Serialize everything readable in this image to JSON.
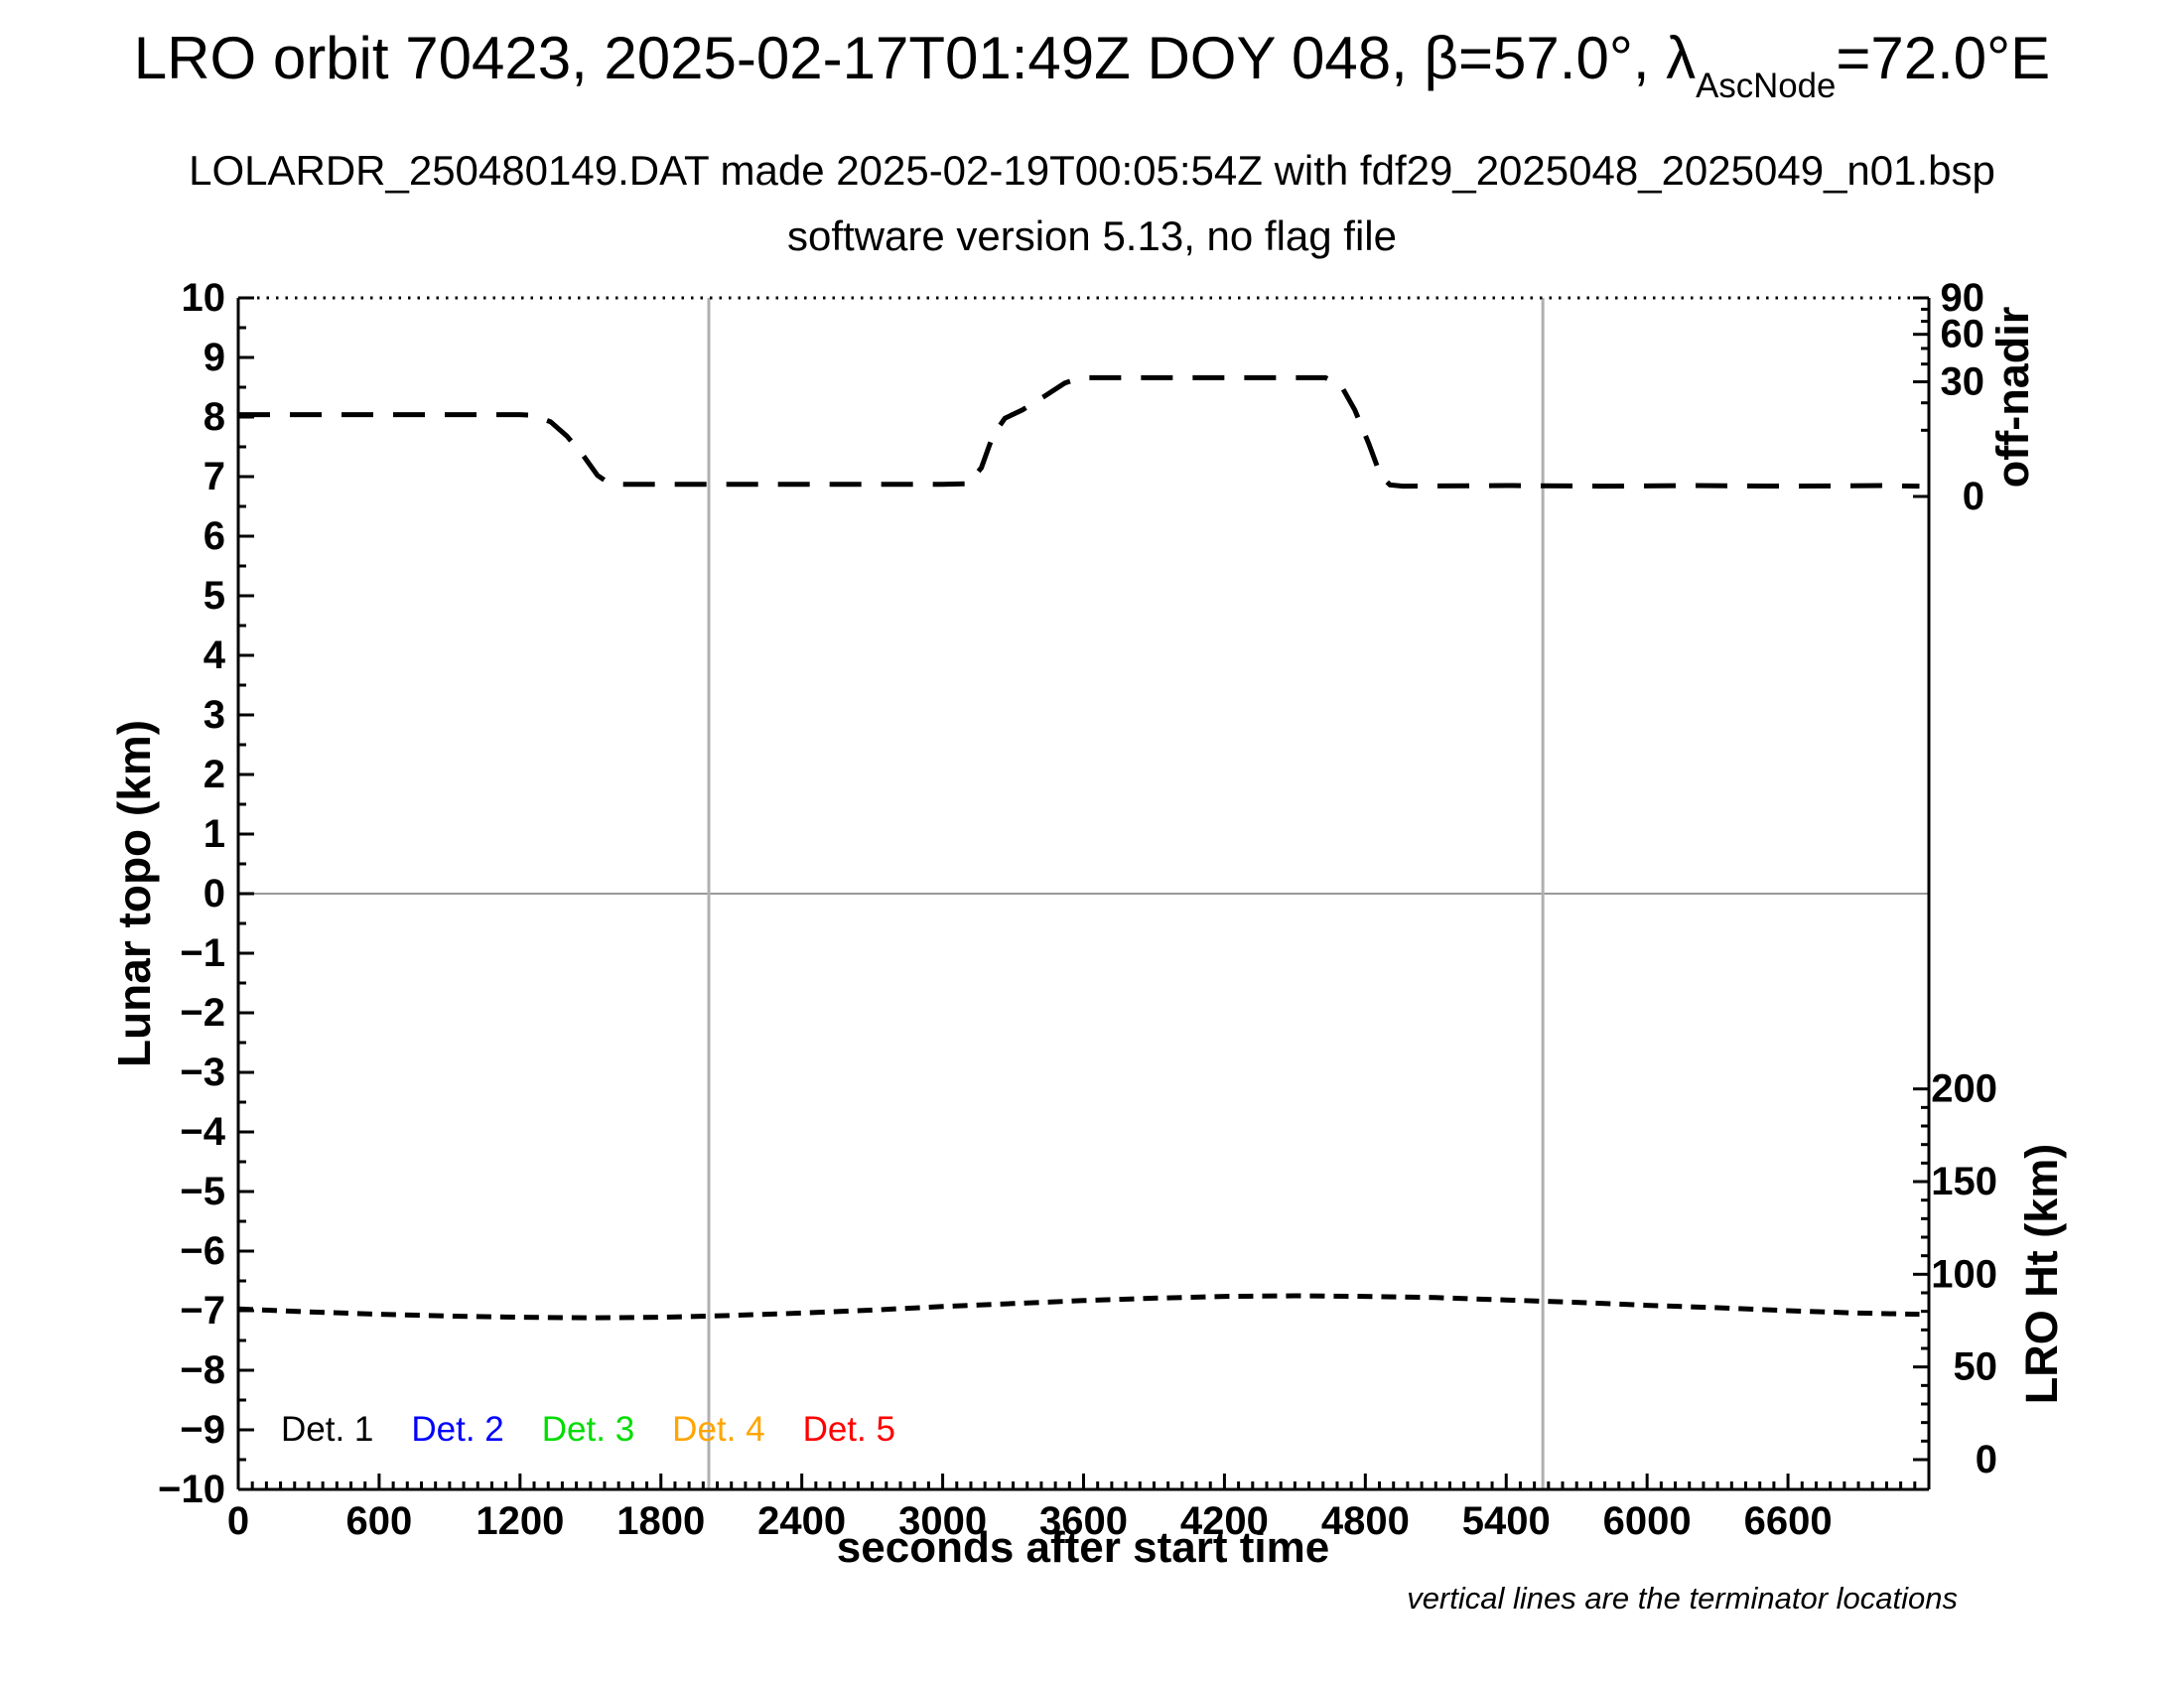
{
  "header": {
    "title_prefix": "LRO orbit 70423, 2025-02-17T01:49Z DOY 048, β=57.0°, λ",
    "title_sub": "AscNode",
    "title_suffix": "=72.0°E",
    "subtitle": "LOLARDR_250480149.DAT made 2025-02-19T00:05:54Z with fdf29_2025048_2025049_n01.bsp",
    "subtitle2": "software version 5.13, no flag file"
  },
  "chart_data": {
    "type": "line",
    "title": "LRO orbit 70423, 2025-02-17T01:49Z DOY 048, β=57.0°, λ_AscNode=72.0°E",
    "subtitle": "LOLARDR_250480149.DAT made 2025-02-19T00:05:54Z with fdf29_2025048_2025049_n01.bsp",
    "subtitle2": "software version 5.13, no flag file",
    "xlabel": "seconds after start time",
    "ylabel_left": "Lunar topo (km)",
    "ylabel_right_top": "off-nadir",
    "ylabel_right_bottom": "LRO Ht (km)",
    "note": "vertical lines are the terminator locations",
    "xlim": [
      0,
      7200
    ],
    "ylim_left": [
      -10,
      10
    ],
    "x_major_ticks": [
      0,
      600,
      1200,
      1800,
      2400,
      3000,
      3600,
      4200,
      4800,
      5400,
      6000,
      6600
    ],
    "x_minor_step": 60,
    "y_major_ticks": [
      -10,
      -9,
      -8,
      -7,
      -6,
      -5,
      -4,
      -3,
      -2,
      -1,
      0,
      1,
      2,
      3,
      4,
      5,
      6,
      7,
      8,
      9,
      10
    ],
    "y_minor_step": 0.5,
    "offnadir_axis": {
      "scale": "sqrt",
      "major_ticks": [
        90,
        60,
        30,
        0
      ],
      "minor_ticks": [
        10,
        20,
        40,
        50,
        70,
        80
      ],
      "left_value_at_0": 6.667,
      "left_value_at_90": 10
    },
    "lro_ht_axis": {
      "scale": "linear",
      "major_ticks": [
        200,
        150,
        100,
        50,
        0
      ],
      "minor_step": 10,
      "left_value_at_0": -9.5,
      "left_value_at_200": -3.278
    },
    "terminator_lines_x_seconds": [
      2004,
      5556
    ],
    "zero_line_y": 0,
    "grid": "none (gray zero line + gray terminator verticals)",
    "legend_position": "bottom-left inside plot",
    "series": [
      {
        "name": "off-nadir angle",
        "points_units": "seconds vs left-axis plot units (sqrt-scaled degrees)",
        "plateaus_deg_approx": {
          "start": 15.5,
          "middle_low": 0.3,
          "high": 32
        },
        "dash": [
          32,
          20
        ],
        "color": "#000000",
        "points": [
          [
            0,
            8.04
          ],
          [
            300,
            8.04
          ],
          [
            600,
            8.04
          ],
          [
            900,
            8.04
          ],
          [
            1200,
            8.04
          ],
          [
            1255,
            8.03
          ],
          [
            1330,
            7.92
          ],
          [
            1400,
            7.68
          ],
          [
            1470,
            7.35
          ],
          [
            1530,
            7.02
          ],
          [
            1575,
            6.9
          ],
          [
            1630,
            6.87
          ],
          [
            2000,
            6.87
          ],
          [
            2500,
            6.87
          ],
          [
            3000,
            6.87
          ],
          [
            3110,
            6.88
          ],
          [
            3165,
            7.15
          ],
          [
            3215,
            7.7
          ],
          [
            3265,
            7.98
          ],
          [
            3340,
            8.12
          ],
          [
            3430,
            8.34
          ],
          [
            3520,
            8.57
          ],
          [
            3590,
            8.66
          ],
          [
            4000,
            8.66
          ],
          [
            4400,
            8.66
          ],
          [
            4630,
            8.66
          ],
          [
            4695,
            8.54
          ],
          [
            4755,
            8.12
          ],
          [
            4815,
            7.55
          ],
          [
            4865,
            7.02
          ],
          [
            4905,
            6.86
          ],
          [
            4960,
            6.84
          ],
          [
            5400,
            6.85
          ],
          [
            5800,
            6.84
          ],
          [
            6200,
            6.85
          ],
          [
            6600,
            6.84
          ],
          [
            7000,
            6.85
          ],
          [
            7160,
            6.84
          ]
        ]
      },
      {
        "name": "LRO height",
        "points_units": "seconds vs left-axis plot units",
        "approx_km": {
          "start": 81,
          "min": 77,
          "max": 88,
          "end": 79
        },
        "dash": [
          15,
          9
        ],
        "color": "#000000",
        "points": [
          [
            0,
            -6.97
          ],
          [
            300,
            -7.02
          ],
          [
            600,
            -7.06
          ],
          [
            900,
            -7.09
          ],
          [
            1200,
            -7.11
          ],
          [
            1500,
            -7.12
          ],
          [
            1800,
            -7.11
          ],
          [
            2100,
            -7.08
          ],
          [
            2400,
            -7.04
          ],
          [
            2700,
            -6.99
          ],
          [
            3000,
            -6.93
          ],
          [
            3300,
            -6.88
          ],
          [
            3600,
            -6.83
          ],
          [
            3900,
            -6.79
          ],
          [
            4200,
            -6.76
          ],
          [
            4500,
            -6.75
          ],
          [
            4800,
            -6.76
          ],
          [
            5100,
            -6.78
          ],
          [
            5400,
            -6.82
          ],
          [
            5700,
            -6.86
          ],
          [
            6000,
            -6.91
          ],
          [
            6300,
            -6.95
          ],
          [
            6600,
            -7.0
          ],
          [
            6900,
            -7.04
          ],
          [
            7160,
            -7.06
          ]
        ]
      }
    ],
    "legend": [
      {
        "label": "Det. 1",
        "color": "#000000"
      },
      {
        "label": "Det. 2",
        "color": "#0000ff"
      },
      {
        "label": "Det. 3",
        "color": "#00dd00"
      },
      {
        "label": "Det. 4",
        "color": "#ffa500"
      },
      {
        "label": "Det. 5",
        "color": "#ff0000"
      }
    ],
    "colors": {
      "curve": "#000000",
      "zero_line": "#999999",
      "terminator_line": "#b0b0b0",
      "frame": "#000000"
    }
  }
}
